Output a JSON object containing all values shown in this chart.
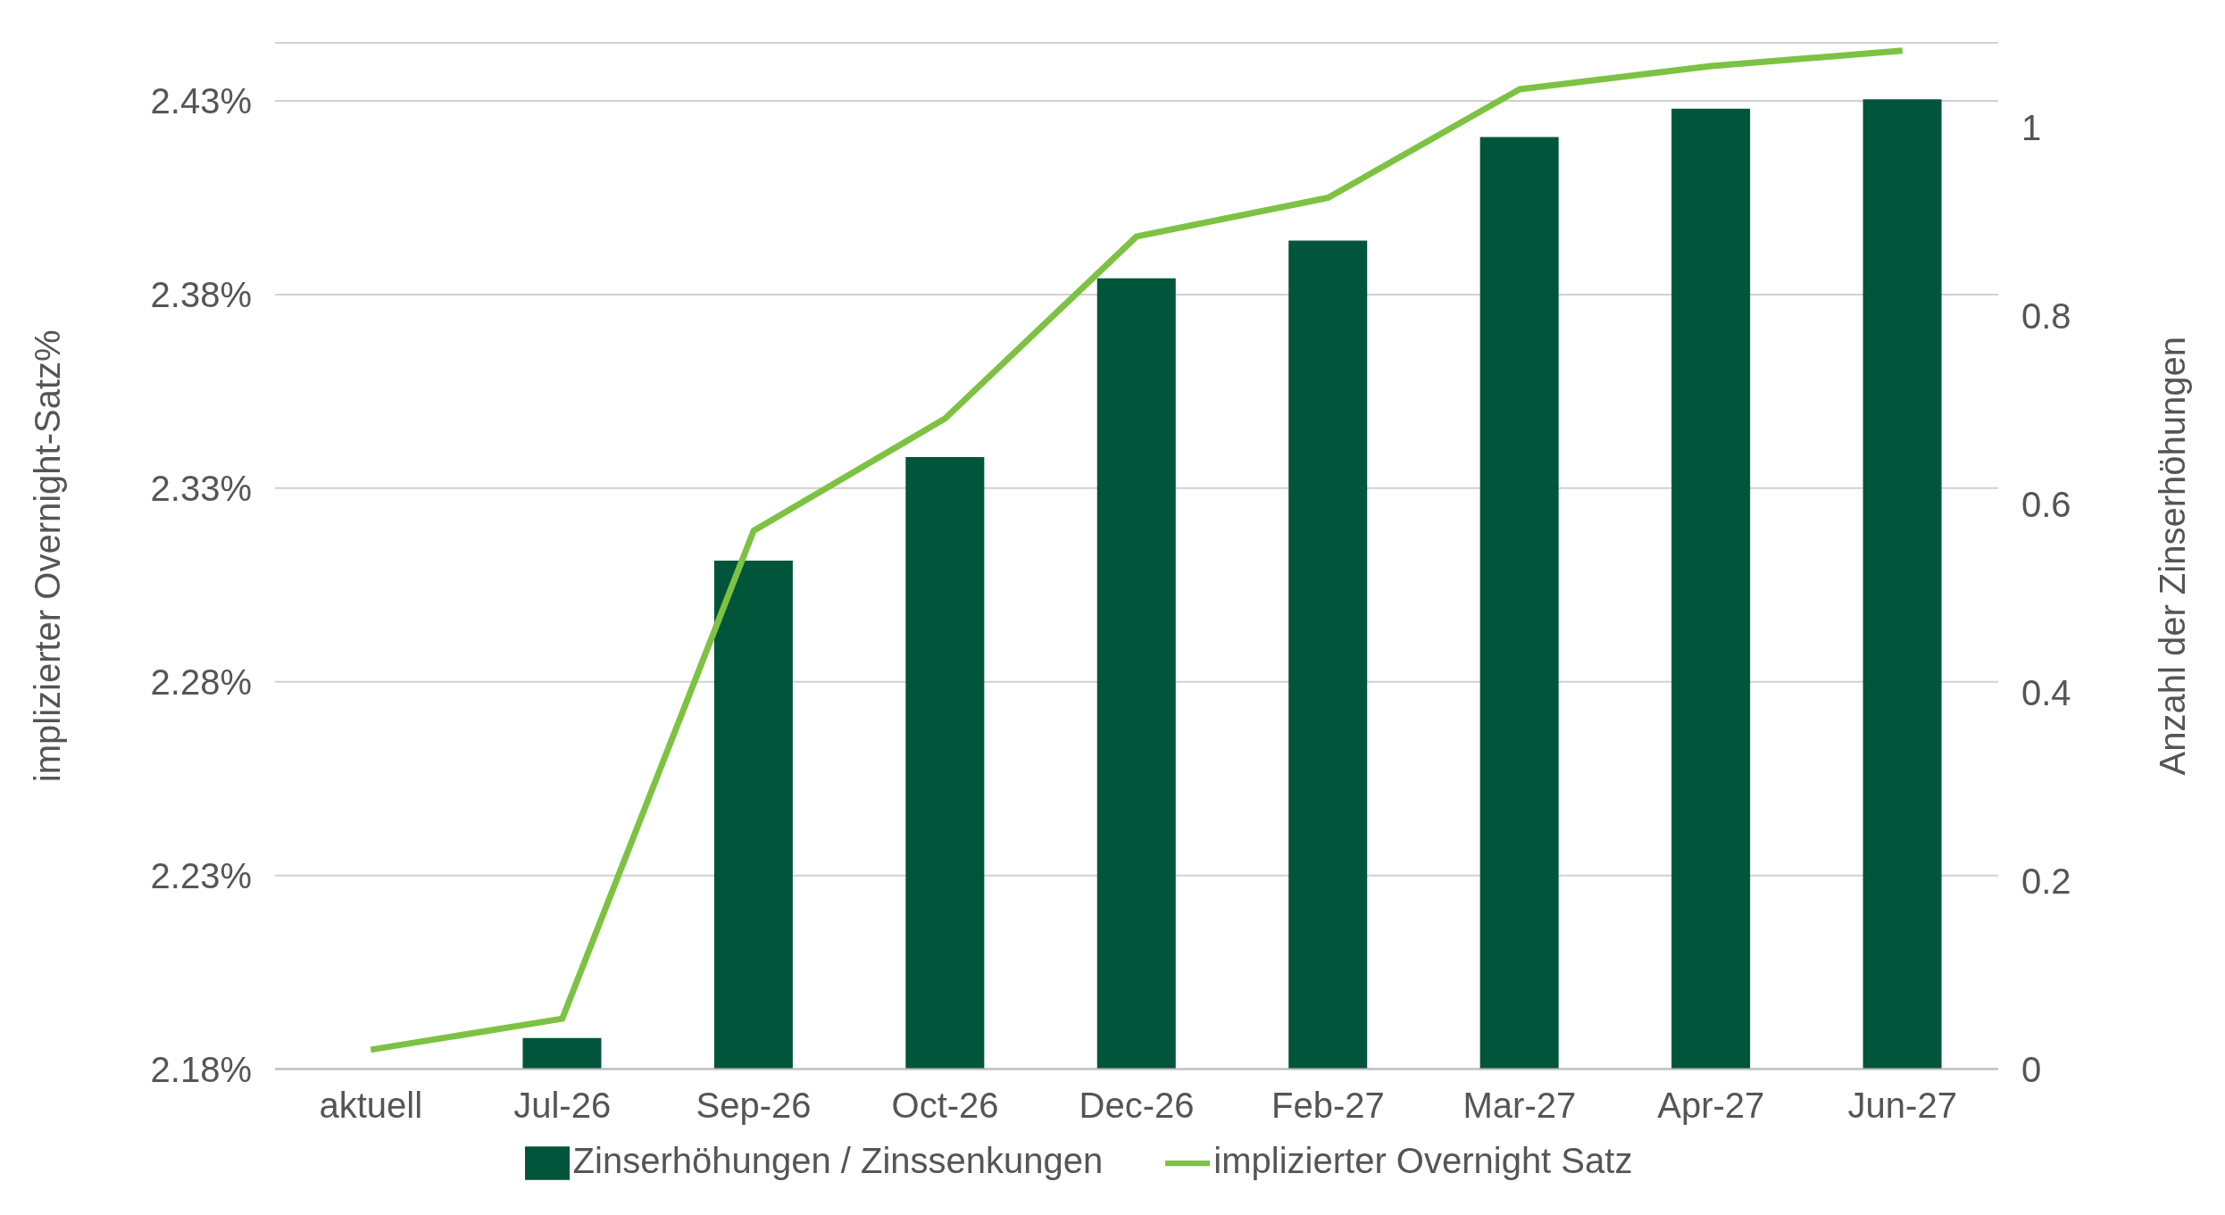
{
  "chart_data": {
    "type": "bar",
    "categories": [
      "aktuell",
      "Jul-26",
      "Sep-26",
      "Oct-26",
      "Dec-26",
      "Feb-27",
      "Mar-27",
      "Apr-27",
      "Jun-27"
    ],
    "series": [
      {
        "name": "Zinserhöhungen / Zinssenkungen",
        "axis": "y2",
        "color": "#00553a",
        "values": [
          0,
          0.033,
          0.54,
          0.65,
          0.84,
          0.88,
          0.99,
          1.02,
          1.03
        ]
      },
      {
        "name": "implizierter Overnight Satz",
        "type": "line",
        "color": "#7dc242",
        "values": [
          2.185,
          2.193,
          2.319,
          2.348,
          2.395,
          2.405,
          2.433,
          2.439,
          2.443
        ]
      }
    ],
    "ylabel": "implizierter Overnight-Satz%",
    "y2label": "Anzahl der Zinserhöhungen",
    "ylim": [
      2.18,
      2.445
    ],
    "yticks": [
      {
        "value": 2.18,
        "label": "2.18%"
      },
      {
        "value": 2.23,
        "label": "2.23%"
      },
      {
        "value": 2.28,
        "label": "2.28%"
      },
      {
        "value": 2.33,
        "label": "2.33%"
      },
      {
        "value": 2.38,
        "label": "2.38%"
      },
      {
        "value": 2.43,
        "label": "2.43%"
      }
    ],
    "y2lim": [
      0,
      1.09
    ],
    "y2ticks": [
      0,
      {
        "value": 0.2,
        "label": "0.2"
      },
      {
        "value": 0.4,
        "label": "0.4"
      },
      {
        "value": 0.6,
        "label": "0.6"
      },
      {
        "value": 0.8,
        "label": "0.8"
      },
      1
    ],
    "grid": "y",
    "legend": "bottom",
    "marker": "none",
    "line_style": "solid"
  }
}
